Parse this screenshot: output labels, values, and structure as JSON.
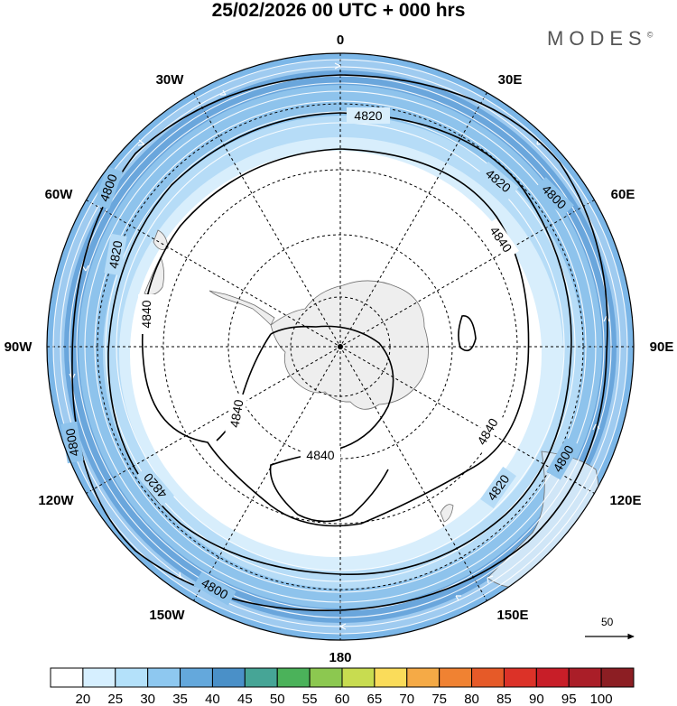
{
  "title": "25/02/2026  00 UTC  + 000 hrs",
  "brand": {
    "name": "MODES",
    "mark": "©"
  },
  "longitude_labels": {
    "0": "0",
    "30E": "30E",
    "60E": "60E",
    "90E": "90E",
    "120E": "120E",
    "150E": "150E",
    "180": "180",
    "150W": "150W",
    "120W": "120W",
    "90W": "90W",
    "60W": "60W",
    "30W": "30W"
  },
  "contours": {
    "c4800a": "4800",
    "c4800b": "4800",
    "c4800c": "4800",
    "c4800d": "4800",
    "c4800e": "4800",
    "c4820a": "4820",
    "c4820b": "4820",
    "c4820c": "4820",
    "c4820d": "4820",
    "c4820e": "4820",
    "c4840a": "4840",
    "c4840b": "4840",
    "c4840c": "4840",
    "c4840d": "4840",
    "c4840e": "4840"
  },
  "reference_vector": {
    "value": "50"
  },
  "colorbar": {
    "colors": [
      "#ffffff",
      "#d6efff",
      "#b4e1fa",
      "#8ec8f0",
      "#64a8dc",
      "#4a90c8",
      "#46a596",
      "#4bb25a",
      "#8cc850",
      "#c8dc50",
      "#fadc5a",
      "#f5aa46",
      "#f08232",
      "#e65a28",
      "#dc3228",
      "#c81e28",
      "#aa1e28",
      "#8c1e23"
    ],
    "ticks": [
      "20",
      "25",
      "30",
      "35",
      "40",
      "45",
      "50",
      "55",
      "60",
      "65",
      "70",
      "75",
      "80",
      "85",
      "90",
      "95",
      "100"
    ]
  }
}
